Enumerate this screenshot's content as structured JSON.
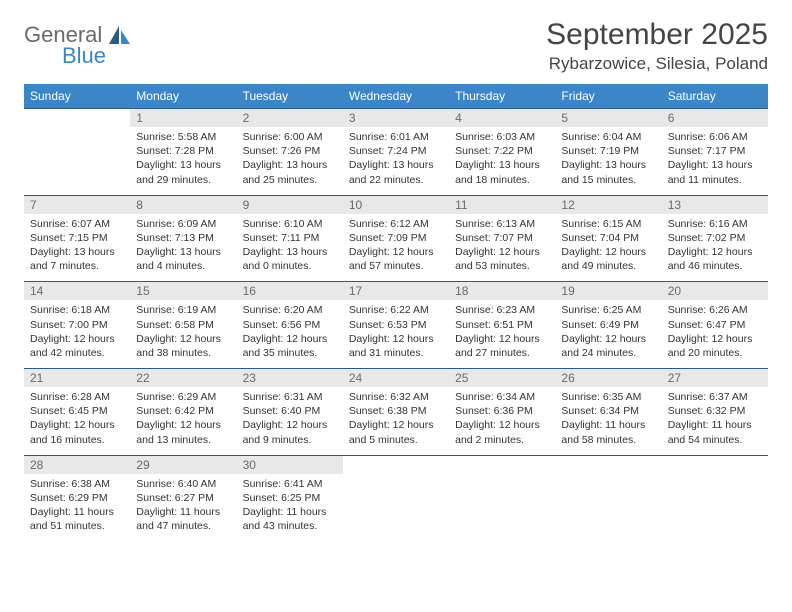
{
  "brand": {
    "general": "General",
    "blue": "Blue"
  },
  "title": "September 2025",
  "location": "Rybarzowice, Silesia, Poland",
  "colors": {
    "header_bg": "#3a86c8",
    "header_text": "#ffffff",
    "daynum_bg": "#e8e8e8",
    "daynum_text": "#6a6a6a",
    "row_border": "#2a5a88",
    "body_text": "#333333",
    "logo_gray": "#6a6a6a",
    "logo_blue": "#3a86c8"
  },
  "typography": {
    "title_fontsize": 30,
    "location_fontsize": 17,
    "dayheader_fontsize": 12,
    "daynum_fontsize": 12,
    "cell_fontsize": 10.5
  },
  "day_headers": [
    "Sunday",
    "Monday",
    "Tuesday",
    "Wednesday",
    "Thursday",
    "Friday",
    "Saturday"
  ],
  "weeks": [
    [
      null,
      {
        "n": "1",
        "sr": "Sunrise: 5:58 AM",
        "ss": "Sunset: 7:28 PM",
        "d1": "Daylight: 13 hours",
        "d2": "and 29 minutes."
      },
      {
        "n": "2",
        "sr": "Sunrise: 6:00 AM",
        "ss": "Sunset: 7:26 PM",
        "d1": "Daylight: 13 hours",
        "d2": "and 25 minutes."
      },
      {
        "n": "3",
        "sr": "Sunrise: 6:01 AM",
        "ss": "Sunset: 7:24 PM",
        "d1": "Daylight: 13 hours",
        "d2": "and 22 minutes."
      },
      {
        "n": "4",
        "sr": "Sunrise: 6:03 AM",
        "ss": "Sunset: 7:22 PM",
        "d1": "Daylight: 13 hours",
        "d2": "and 18 minutes."
      },
      {
        "n": "5",
        "sr": "Sunrise: 6:04 AM",
        "ss": "Sunset: 7:19 PM",
        "d1": "Daylight: 13 hours",
        "d2": "and 15 minutes."
      },
      {
        "n": "6",
        "sr": "Sunrise: 6:06 AM",
        "ss": "Sunset: 7:17 PM",
        "d1": "Daylight: 13 hours",
        "d2": "and 11 minutes."
      }
    ],
    [
      {
        "n": "7",
        "sr": "Sunrise: 6:07 AM",
        "ss": "Sunset: 7:15 PM",
        "d1": "Daylight: 13 hours",
        "d2": "and 7 minutes."
      },
      {
        "n": "8",
        "sr": "Sunrise: 6:09 AM",
        "ss": "Sunset: 7:13 PM",
        "d1": "Daylight: 13 hours",
        "d2": "and 4 minutes."
      },
      {
        "n": "9",
        "sr": "Sunrise: 6:10 AM",
        "ss": "Sunset: 7:11 PM",
        "d1": "Daylight: 13 hours",
        "d2": "and 0 minutes."
      },
      {
        "n": "10",
        "sr": "Sunrise: 6:12 AM",
        "ss": "Sunset: 7:09 PM",
        "d1": "Daylight: 12 hours",
        "d2": "and 57 minutes."
      },
      {
        "n": "11",
        "sr": "Sunrise: 6:13 AM",
        "ss": "Sunset: 7:07 PM",
        "d1": "Daylight: 12 hours",
        "d2": "and 53 minutes."
      },
      {
        "n": "12",
        "sr": "Sunrise: 6:15 AM",
        "ss": "Sunset: 7:04 PM",
        "d1": "Daylight: 12 hours",
        "d2": "and 49 minutes."
      },
      {
        "n": "13",
        "sr": "Sunrise: 6:16 AM",
        "ss": "Sunset: 7:02 PM",
        "d1": "Daylight: 12 hours",
        "d2": "and 46 minutes."
      }
    ],
    [
      {
        "n": "14",
        "sr": "Sunrise: 6:18 AM",
        "ss": "Sunset: 7:00 PM",
        "d1": "Daylight: 12 hours",
        "d2": "and 42 minutes."
      },
      {
        "n": "15",
        "sr": "Sunrise: 6:19 AM",
        "ss": "Sunset: 6:58 PM",
        "d1": "Daylight: 12 hours",
        "d2": "and 38 minutes."
      },
      {
        "n": "16",
        "sr": "Sunrise: 6:20 AM",
        "ss": "Sunset: 6:56 PM",
        "d1": "Daylight: 12 hours",
        "d2": "and 35 minutes."
      },
      {
        "n": "17",
        "sr": "Sunrise: 6:22 AM",
        "ss": "Sunset: 6:53 PM",
        "d1": "Daylight: 12 hours",
        "d2": "and 31 minutes."
      },
      {
        "n": "18",
        "sr": "Sunrise: 6:23 AM",
        "ss": "Sunset: 6:51 PM",
        "d1": "Daylight: 12 hours",
        "d2": "and 27 minutes."
      },
      {
        "n": "19",
        "sr": "Sunrise: 6:25 AM",
        "ss": "Sunset: 6:49 PM",
        "d1": "Daylight: 12 hours",
        "d2": "and 24 minutes."
      },
      {
        "n": "20",
        "sr": "Sunrise: 6:26 AM",
        "ss": "Sunset: 6:47 PM",
        "d1": "Daylight: 12 hours",
        "d2": "and 20 minutes."
      }
    ],
    [
      {
        "n": "21",
        "sr": "Sunrise: 6:28 AM",
        "ss": "Sunset: 6:45 PM",
        "d1": "Daylight: 12 hours",
        "d2": "and 16 minutes."
      },
      {
        "n": "22",
        "sr": "Sunrise: 6:29 AM",
        "ss": "Sunset: 6:42 PM",
        "d1": "Daylight: 12 hours",
        "d2": "and 13 minutes."
      },
      {
        "n": "23",
        "sr": "Sunrise: 6:31 AM",
        "ss": "Sunset: 6:40 PM",
        "d1": "Daylight: 12 hours",
        "d2": "and 9 minutes."
      },
      {
        "n": "24",
        "sr": "Sunrise: 6:32 AM",
        "ss": "Sunset: 6:38 PM",
        "d1": "Daylight: 12 hours",
        "d2": "and 5 minutes."
      },
      {
        "n": "25",
        "sr": "Sunrise: 6:34 AM",
        "ss": "Sunset: 6:36 PM",
        "d1": "Daylight: 12 hours",
        "d2": "and 2 minutes."
      },
      {
        "n": "26",
        "sr": "Sunrise: 6:35 AM",
        "ss": "Sunset: 6:34 PM",
        "d1": "Daylight: 11 hours",
        "d2": "and 58 minutes."
      },
      {
        "n": "27",
        "sr": "Sunrise: 6:37 AM",
        "ss": "Sunset: 6:32 PM",
        "d1": "Daylight: 11 hours",
        "d2": "and 54 minutes."
      }
    ],
    [
      {
        "n": "28",
        "sr": "Sunrise: 6:38 AM",
        "ss": "Sunset: 6:29 PM",
        "d1": "Daylight: 11 hours",
        "d2": "and 51 minutes."
      },
      {
        "n": "29",
        "sr": "Sunrise: 6:40 AM",
        "ss": "Sunset: 6:27 PM",
        "d1": "Daylight: 11 hours",
        "d2": "and 47 minutes."
      },
      {
        "n": "30",
        "sr": "Sunrise: 6:41 AM",
        "ss": "Sunset: 6:25 PM",
        "d1": "Daylight: 11 hours",
        "d2": "and 43 minutes."
      },
      null,
      null,
      null,
      null
    ]
  ]
}
